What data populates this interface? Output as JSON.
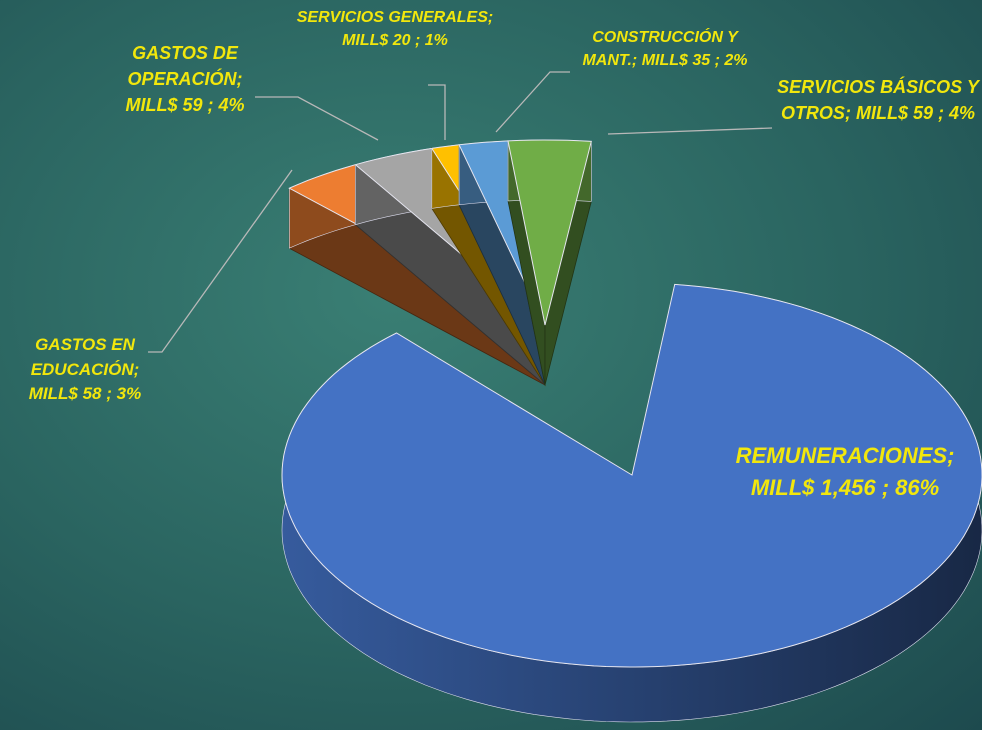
{
  "chart_data": {
    "type": "pie",
    "categories": [
      "REMUNERACIONES",
      "GASTOS EN EDUCACIÓN",
      "GASTOS DE OPERACIÓN",
      "SERVICIOS GENERALES",
      "CONSTRUCCIÓN Y MANT.",
      "SERVICIOS BÁSICOS Y OTROS"
    ],
    "values": [
      1456,
      58,
      59,
      20,
      35,
      59
    ],
    "value_labels": [
      "1,456",
      "58",
      "59",
      "20",
      "35",
      "59"
    ],
    "percents": [
      86,
      3,
      4,
      1,
      2,
      4
    ],
    "percent_labels": [
      "86%",
      "3%",
      "4%",
      "1%",
      "2%",
      "4%"
    ],
    "unit": "MILL$",
    "separator": ";",
    "colors": [
      "#4472c4",
      "#ed7d31",
      "#a5a5a5",
      "#ffc000",
      "#5b9bd5",
      "#70ad47"
    ]
  }
}
